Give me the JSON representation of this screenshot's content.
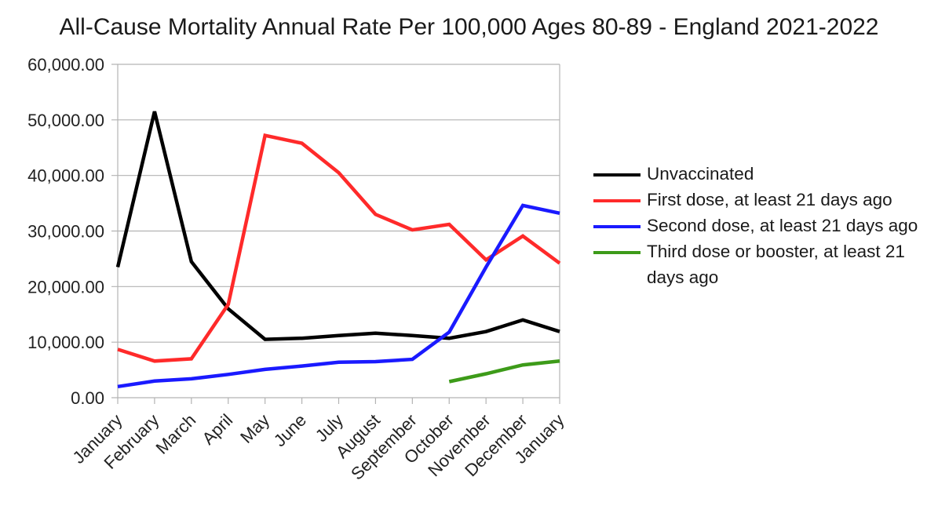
{
  "chart_data": {
    "type": "line",
    "title": "All-Cause Mortality Annual Rate Per 100,000 Ages 80-89 - England 2021-2022",
    "xlabel": "",
    "ylabel": "",
    "categories": [
      "January",
      "February",
      "March",
      "April",
      "May",
      "June",
      "July",
      "August",
      "September",
      "October",
      "November",
      "December",
      "January"
    ],
    "ylim": [
      0,
      60000
    ],
    "yticks": [
      "0.00",
      "10,000.00",
      "20,000.00",
      "30,000.00",
      "40,000.00",
      "50,000.00",
      "60,000.00"
    ],
    "grid": "horizontal",
    "legend_position": "right",
    "series": [
      {
        "name": "Unvaccinated",
        "color": "#000000",
        "values": [
          23500,
          51500,
          24500,
          16000,
          10500,
          10700,
          11200,
          11600,
          11200,
          10700,
          11900,
          14000,
          11900
        ]
      },
      {
        "name": "First dose, at least 21 days ago",
        "color": "#ff2a2a",
        "values": [
          8700,
          6600,
          7000,
          16800,
          47200,
          45800,
          40500,
          33000,
          30200,
          31200,
          24800,
          29100,
          24200
        ]
      },
      {
        "name": "Second dose, at least 21 days ago",
        "color": "#1a1aff",
        "values": [
          2000,
          3000,
          3400,
          4200,
          5100,
          5700,
          6400,
          6500,
          6900,
          11800,
          23500,
          34600,
          33200
        ]
      },
      {
        "name": "Third dose or booster, at least 21 days ago",
        "color": "#3d9b19",
        "values": [
          null,
          null,
          null,
          null,
          null,
          null,
          null,
          null,
          null,
          2900,
          4300,
          5900,
          6600
        ]
      }
    ]
  }
}
